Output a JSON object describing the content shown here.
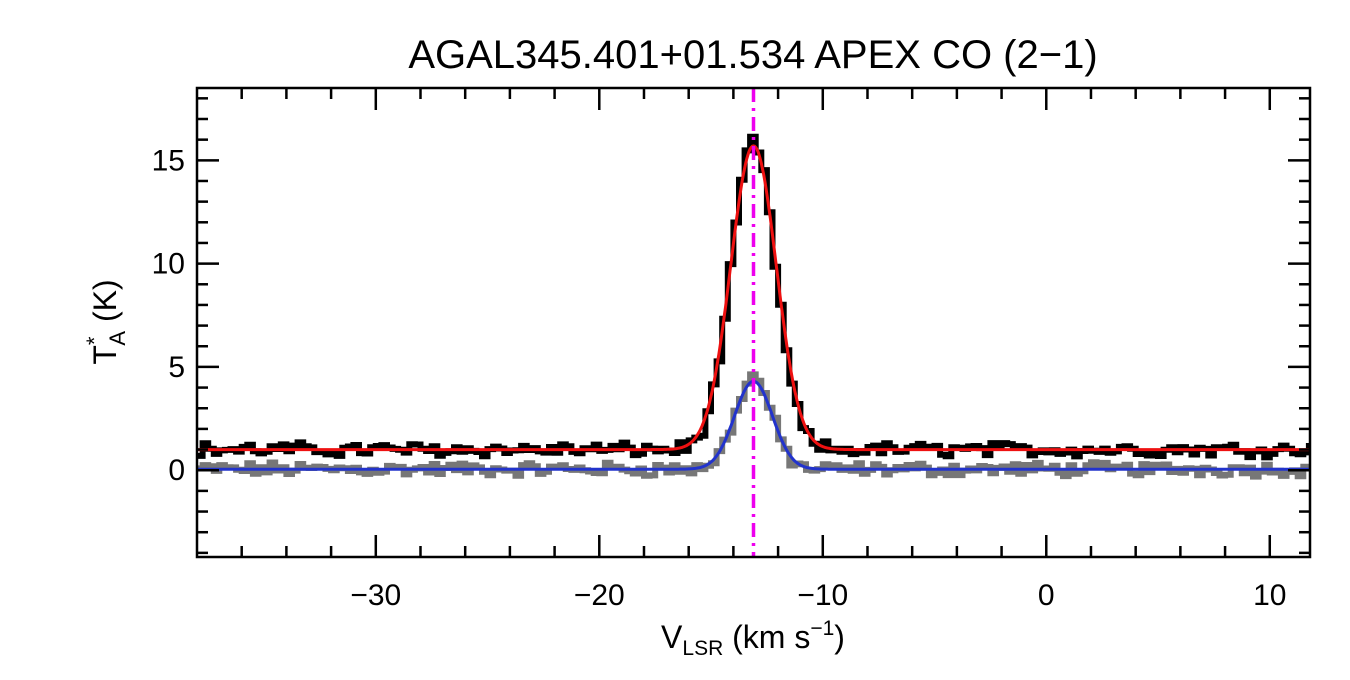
{
  "chart_data": {
    "type": "line",
    "title": "AGAL345.401+01.534  APEX CO (2−1)",
    "xlabel": {
      "main": "V",
      "sub": "LSR",
      "unit_pre": " (km s",
      "sup": "−1",
      "unit_post": ")"
    },
    "ylabel": {
      "main": "T",
      "sup": "*",
      "sub": "A",
      "unit": " (K)"
    },
    "xlim": [
      -38,
      11.8
    ],
    "ylim": [
      -4.2,
      18.5
    ],
    "xticks": [
      -30,
      -20,
      -10,
      0,
      10
    ],
    "yticks": [
      0,
      5,
      10,
      15
    ],
    "xtick_labels": [
      "−30",
      "−20",
      "−10",
      "0",
      "10"
    ],
    "ytick_labels": [
      "0",
      "5",
      "10",
      "15"
    ],
    "grid": false,
    "legend": "none",
    "vline": {
      "x": -13.1,
      "color": "#ee00ee",
      "style": "dash-dot"
    },
    "series": [
      {
        "role": "observed spectrum (offset)",
        "style": "step",
        "color": "#000000",
        "baseline": 1.0,
        "peak": 15.9,
        "center": -13.1,
        "fwhm": 2.3,
        "channel_width": 0.25
      },
      {
        "role": "gaussian fit (offset)",
        "style": "line",
        "color": "#ee1111",
        "baseline": 1.0,
        "peak": 15.7,
        "center": -13.1,
        "fwhm": 2.4
      },
      {
        "role": "observed spectrum",
        "style": "step",
        "color": "#777777",
        "baseline": 0.05,
        "peak": 4.5,
        "center": -13.1,
        "fwhm": 1.9,
        "channel_width": 0.25
      },
      {
        "role": "gaussian fit",
        "style": "line",
        "color": "#2233cc",
        "baseline": 0.05,
        "peak": 4.3,
        "center": -13.1,
        "fwhm": 2.0
      }
    ]
  }
}
